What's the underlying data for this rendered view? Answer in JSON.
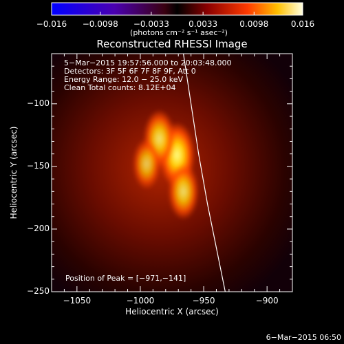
{
  "colorbar": {
    "tick_values": [
      -0.016,
      -0.0098,
      -0.0033,
      0.0033,
      0.0098,
      0.016
    ],
    "tick_labels": [
      "−0.016",
      "−0.0098",
      "−0.0033",
      "0.0033",
      "0.0098",
      "0.016"
    ],
    "unit_label": "(photons cm⁻² s⁻¹ asec⁻²)",
    "range": [
      -0.016,
      0.016
    ]
  },
  "chart_data": {
    "type": "heatmap",
    "title": "Reconstructed RHESSI Image",
    "xlabel": "Heliocentric X (arcsec)",
    "ylabel": "Heliocentric Y (arcsec)",
    "xlim": [
      -1070,
      -880
    ],
    "ylim": [
      -250,
      -60
    ],
    "x_ticks": [
      -1050,
      -1000,
      -950,
      -900
    ],
    "x_tick_labels": [
      "−1050",
      "−1000",
      "−950",
      "−900"
    ],
    "y_ticks": [
      -250,
      -200,
      -150,
      -100
    ],
    "y_tick_labels": [
      "−250",
      "−200",
      "−150",
      "−100"
    ],
    "annotations": [
      "5−Mar−2015 19:57:56.000 to 20:03:48.000",
      "Detectors: 3F 5F 6F 7F 8F 9F, Att 0",
      "Energy Range: 12.0 − 25.0 keV",
      "Clean    Total counts: 8.12E+04"
    ],
    "peak_label": "Position of Peak = [−971,−141]",
    "peak": [
      -971,
      -141
    ],
    "sources": [
      {
        "x": -971,
        "y": -141,
        "value": 0.016
      },
      {
        "x": -985,
        "y": -128,
        "value": 0.012
      },
      {
        "x": -966,
        "y": -170,
        "value": 0.011
      },
      {
        "x": -995,
        "y": -148,
        "value": 0.008
      }
    ],
    "limb_curve": [
      {
        "x": -966,
        "y": -60
      },
      {
        "x": -960,
        "y": -100
      },
      {
        "x": -954,
        "y": -140
      },
      {
        "x": -947,
        "y": -180
      },
      {
        "x": -939,
        "y": -220
      },
      {
        "x": -933,
        "y": -250
      }
    ]
  },
  "footer": {
    "date": "6−Mar−2015 06:50"
  }
}
